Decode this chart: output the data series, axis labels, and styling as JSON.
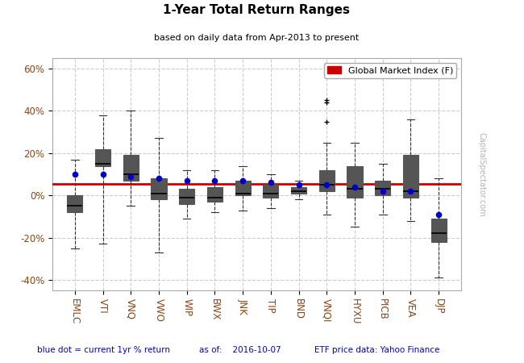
{
  "title": "1-Year Total Return Ranges",
  "subtitle": "based on daily data from Apr-2013 to present",
  "labels": [
    "EMLC",
    "VTI",
    "VNQ",
    "VWO",
    "WIP",
    "BWX",
    "JNK",
    "TIP",
    "BND",
    "VNQI",
    "HYXU",
    "PICB",
    "VEA",
    "DJP"
  ],
  "legend_label": "Global Market Index (F)",
  "global_market_line": 5.5,
  "global_market_color": "#cc0000",
  "box_color": "#cccccc",
  "box_edge_color": "#555555",
  "median_color": "#000000",
  "whisker_color": "#333333",
  "dot_color": "#0000cc",
  "dot_size": 30,
  "footer_left": "blue dot = current 1yr % return",
  "footer_mid": "as of:    2016-10-07",
  "footer_right": "ETF price data: Yahoo Finance",
  "watermark": "CapitalSpectator.com",
  "ylim": [
    -45,
    65
  ],
  "yticks": [
    -40,
    -20,
    0,
    20,
    40,
    60
  ],
  "yticklabels": [
    "-40%",
    "-20%",
    "0%",
    "20%",
    "40%",
    "60%"
  ],
  "boxes": [
    {
      "whislo": -25,
      "q1": -8,
      "med": -5,
      "q3": 0,
      "whishi": 17,
      "fliers": [],
      "dot": 10
    },
    {
      "whislo": -23,
      "q1": 14,
      "med": 15,
      "q3": 22,
      "whishi": 38,
      "fliers": [],
      "dot": 10
    },
    {
      "whislo": -5,
      "q1": 7,
      "med": 10,
      "q3": 19,
      "whishi": 40,
      "fliers": [],
      "dot": 9
    },
    {
      "whislo": -27,
      "q1": -2,
      "med": 1,
      "q3": 8,
      "whishi": 27,
      "fliers": [],
      "dot": 8
    },
    {
      "whislo": -11,
      "q1": -4,
      "med": -1,
      "q3": 3,
      "whishi": 12,
      "fliers": [],
      "dot": 7
    },
    {
      "whislo": -8,
      "q1": -3,
      "med": -1,
      "q3": 4,
      "whishi": 12,
      "fliers": [],
      "dot": 7
    },
    {
      "whislo": -7,
      "q1": 0,
      "med": 1,
      "q3": 7,
      "whishi": 14,
      "fliers": [],
      "dot": 7
    },
    {
      "whislo": -6,
      "q1": -1,
      "med": 1,
      "q3": 5,
      "whishi": 10,
      "fliers": [],
      "dot": 6
    },
    {
      "whislo": -2,
      "q1": 1,
      "med": 2,
      "q3": 4,
      "whishi": 7,
      "fliers": [],
      "dot": 5
    },
    {
      "whislo": -9,
      "q1": 2,
      "med": 5,
      "q3": 12,
      "whishi": 25,
      "fliers": [
        35,
        44,
        45
      ],
      "dot": 5
    },
    {
      "whislo": -15,
      "q1": -1,
      "med": 3,
      "q3": 14,
      "whishi": 25,
      "fliers": [],
      "dot": 4
    },
    {
      "whislo": -9,
      "q1": 0,
      "med": 3,
      "q3": 7,
      "whishi": 15,
      "fliers": [],
      "dot": 2
    },
    {
      "whislo": -12,
      "q1": -1,
      "med": 2,
      "q3": 19,
      "whishi": 36,
      "fliers": [],
      "dot": 2
    },
    {
      "whislo": -39,
      "q1": -22,
      "med": -18,
      "q3": -11,
      "whishi": 8,
      "fliers": [],
      "dot": -9
    }
  ]
}
